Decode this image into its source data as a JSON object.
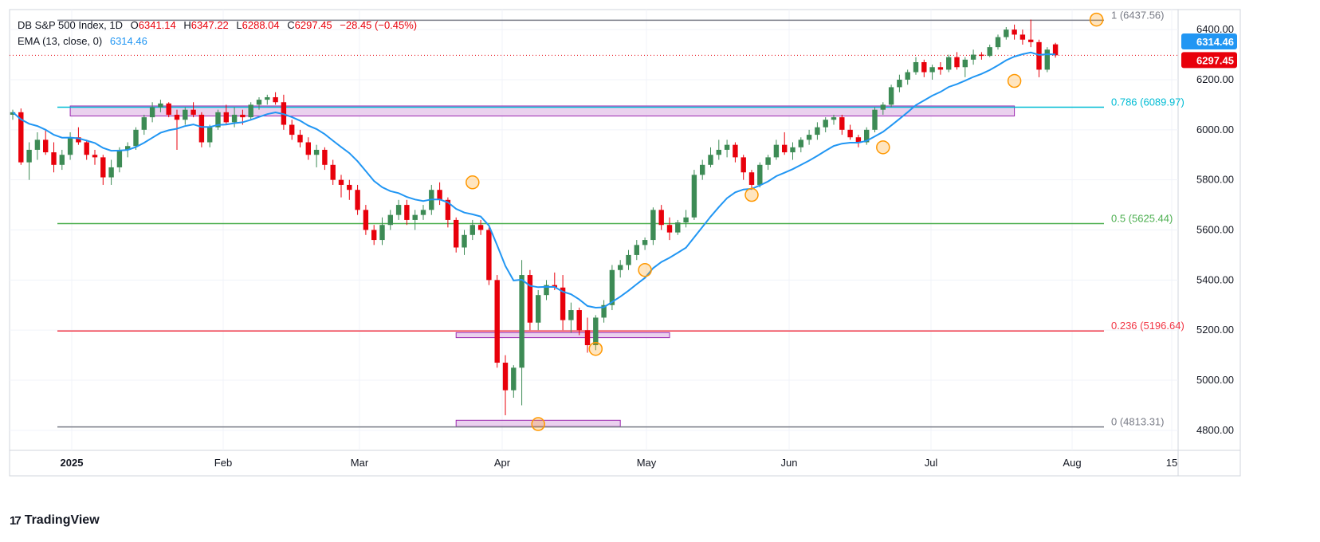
{
  "header": {
    "symbol": "DB S&P 500 Index, 1D",
    "open_label": "O",
    "open": "6341.14",
    "high_label": "H",
    "high": "6347.22",
    "low_label": "L",
    "low": "6288.04",
    "close_label": "C",
    "close": "6297.45",
    "change": "−28.45 (−0.45%)",
    "ema_label": "EMA (13, close, 0)",
    "ema_value": "6314.46"
  },
  "footer": {
    "brand": "TradingView",
    "logo_glyph": "17"
  },
  "colors": {
    "up": "#26a69a",
    "up_body": "#3d8b55",
    "down": "#e8000b",
    "ema": "#2196f3",
    "fib_1": "#787b86",
    "fib_786": "#00bcd4",
    "fib_05": "#4caf50",
    "fib_236": "#f23645",
    "fib_0": "#787b86",
    "zone_fill": "#e1bee7",
    "zone_stroke": "#9c27b0",
    "circle": "#ff9800"
  },
  "chart_data": {
    "type": "candlestick",
    "title": "DB S&P 500 Index, 1D",
    "y_axis": {
      "ticks": [
        "4800.00",
        "5000.00",
        "5200.00",
        "5400.00",
        "5600.00",
        "5800.00",
        "6000.00",
        "6200.00",
        "6400.00"
      ],
      "range": [
        4720,
        6480
      ],
      "position": "right"
    },
    "x_axis": {
      "ticks": [
        "2025",
        "Feb",
        "Mar",
        "Apr",
        "May",
        "Jun",
        "Jul",
        "Aug",
        "15"
      ]
    },
    "price_labels": [
      {
        "text": "6314.46",
        "value": 6314.46,
        "color": "#2196f3"
      },
      {
        "text": "6297.45",
        "value": 6297.45,
        "color": "#e8000b"
      }
    ],
    "fib_levels": [
      {
        "label": "1 (6437.56)",
        "value": 6437.56,
        "color": "#787b86"
      },
      {
        "label": "0.786 (6089.97)",
        "value": 6089.97,
        "color": "#00bcd4"
      },
      {
        "label": "0.5 (5625.44)",
        "value": 5625.44,
        "color": "#4caf50"
      },
      {
        "label": "0.236 (5196.64)",
        "value": 5196.64,
        "color": "#f23645"
      },
      {
        "label": "0 (4813.31)",
        "value": 4813.31,
        "color": "#787b86"
      }
    ],
    "zones": [
      {
        "from_index": 7,
        "to_index": 122,
        "top": 6095,
        "bottom": 6055
      },
      {
        "from_index": 54,
        "to_index": 80,
        "top": 5190,
        "bottom": 5170
      },
      {
        "from_index": 54,
        "to_index": 74,
        "top": 4840,
        "bottom": 4815
      }
    ],
    "markers": [
      {
        "index": 56,
        "value": 5790
      },
      {
        "index": 64,
        "value": 4825
      },
      {
        "index": 71,
        "value": 5125
      },
      {
        "index": 77,
        "value": 5440
      },
      {
        "index": 90,
        "value": 5740
      },
      {
        "index": 106,
        "value": 5930
      },
      {
        "index": 122,
        "value": 6195
      },
      {
        "index": 132,
        "value": 6440
      }
    ],
    "candles": [
      [
        6060,
        6080,
        6040,
        6070
      ],
      [
        6070,
        6085,
        5860,
        5870
      ],
      [
        5870,
        5950,
        5800,
        5920
      ],
      [
        5920,
        5990,
        5880,
        5960
      ],
      [
        5960,
        6000,
        5900,
        5910
      ],
      [
        5910,
        5950,
        5830,
        5860
      ],
      [
        5860,
        5920,
        5840,
        5900
      ],
      [
        5900,
        5990,
        5880,
        5970
      ],
      [
        5970,
        6010,
        5940,
        5950
      ],
      [
        5950,
        5960,
        5880,
        5900
      ],
      [
        5900,
        5920,
        5860,
        5890
      ],
      [
        5890,
        5900,
        5780,
        5810
      ],
      [
        5810,
        5880,
        5780,
        5850
      ],
      [
        5850,
        5930,
        5830,
        5920
      ],
      [
        5920,
        5950,
        5890,
        5935
      ],
      [
        5935,
        6010,
        5920,
        6000
      ],
      [
        6000,
        6060,
        5980,
        6050
      ],
      [
        6050,
        6110,
        6030,
        6090
      ],
      [
        6090,
        6120,
        6070,
        6105
      ],
      [
        6105,
        6110,
        6050,
        6060
      ],
      [
        6060,
        6080,
        5920,
        6040
      ],
      [
        6040,
        6090,
        6020,
        6080
      ],
      [
        6080,
        6110,
        6050,
        6060
      ],
      [
        6060,
        6070,
        5930,
        5950
      ],
      [
        5950,
        6020,
        5930,
        6010
      ],
      [
        6010,
        6080,
        6000,
        6070
      ],
      [
        6070,
        6100,
        6020,
        6030
      ],
      [
        6030,
        6090,
        6010,
        6060
      ],
      [
        6060,
        6080,
        6020,
        6050
      ],
      [
        6050,
        6110,
        6040,
        6100
      ],
      [
        6100,
        6130,
        6080,
        6120
      ],
      [
        6120,
        6140,
        6100,
        6130
      ],
      [
        6130,
        6150,
        6100,
        6110
      ],
      [
        6110,
        6140,
        6000,
        6020
      ],
      [
        6020,
        6040,
        5960,
        5980
      ],
      [
        5980,
        6000,
        5930,
        5950
      ],
      [
        5950,
        5970,
        5880,
        5900
      ],
      [
        5900,
        5940,
        5850,
        5920
      ],
      [
        5920,
        5930,
        5840,
        5860
      ],
      [
        5860,
        5880,
        5780,
        5800
      ],
      [
        5800,
        5820,
        5730,
        5780
      ],
      [
        5780,
        5800,
        5720,
        5760
      ],
      [
        5760,
        5780,
        5660,
        5680
      ],
      [
        5680,
        5700,
        5580,
        5600
      ],
      [
        5600,
        5620,
        5540,
        5560
      ],
      [
        5560,
        5650,
        5540,
        5620
      ],
      [
        5620,
        5680,
        5600,
        5660
      ],
      [
        5660,
        5720,
        5640,
        5700
      ],
      [
        5700,
        5720,
        5620,
        5640
      ],
      [
        5640,
        5680,
        5600,
        5660
      ],
      [
        5660,
        5700,
        5640,
        5680
      ],
      [
        5680,
        5780,
        5660,
        5760
      ],
      [
        5760,
        5790,
        5700,
        5720
      ],
      [
        5720,
        5730,
        5610,
        5640
      ],
      [
        5640,
        5650,
        5510,
        5530
      ],
      [
        5530,
        5600,
        5500,
        5580
      ],
      [
        5580,
        5640,
        5560,
        5620
      ],
      [
        5620,
        5640,
        5580,
        5600
      ],
      [
        5600,
        5610,
        5380,
        5400
      ],
      [
        5400,
        5420,
        5050,
        5070
      ],
      [
        5070,
        5100,
        4860,
        4960
      ],
      [
        4960,
        5060,
        4930,
        5050
      ],
      [
        5050,
        5480,
        4900,
        5420
      ],
      [
        5420,
        5440,
        5200,
        5230
      ],
      [
        5230,
        5360,
        5200,
        5340
      ],
      [
        5340,
        5400,
        5320,
        5380
      ],
      [
        5380,
        5430,
        5360,
        5370
      ],
      [
        5370,
        5420,
        5200,
        5240
      ],
      [
        5240,
        5310,
        5190,
        5280
      ],
      [
        5280,
        5290,
        5180,
        5200
      ],
      [
        5200,
        5250,
        5110,
        5140
      ],
      [
        5140,
        5260,
        5120,
        5250
      ],
      [
        5250,
        5320,
        5230,
        5300
      ],
      [
        5300,
        5460,
        5280,
        5440
      ],
      [
        5440,
        5480,
        5410,
        5460
      ],
      [
        5460,
        5520,
        5440,
        5500
      ],
      [
        5500,
        5560,
        5480,
        5540
      ],
      [
        5540,
        5570,
        5520,
        5560
      ],
      [
        5560,
        5690,
        5540,
        5680
      ],
      [
        5680,
        5700,
        5600,
        5620
      ],
      [
        5620,
        5650,
        5560,
        5590
      ],
      [
        5590,
        5640,
        5580,
        5630
      ],
      [
        5630,
        5680,
        5610,
        5650
      ],
      [
        5650,
        5840,
        5640,
        5820
      ],
      [
        5820,
        5880,
        5800,
        5860
      ],
      [
        5860,
        5930,
        5850,
        5900
      ],
      [
        5900,
        5960,
        5880,
        5920
      ],
      [
        5920,
        5960,
        5890,
        5940
      ],
      [
        5940,
        5950,
        5870,
        5890
      ],
      [
        5890,
        5900,
        5800,
        5830
      ],
      [
        5830,
        5840,
        5760,
        5780
      ],
      [
        5780,
        5870,
        5770,
        5860
      ],
      [
        5860,
        5900,
        5840,
        5890
      ],
      [
        5890,
        5960,
        5880,
        5940
      ],
      [
        5940,
        5990,
        5900,
        5910
      ],
      [
        5910,
        5950,
        5880,
        5930
      ],
      [
        5930,
        5970,
        5910,
        5960
      ],
      [
        5960,
        6000,
        5940,
        5980
      ],
      [
        5980,
        6030,
        5960,
        6010
      ],
      [
        6010,
        6050,
        5990,
        6040
      ],
      [
        6040,
        6060,
        6020,
        6050
      ],
      [
        6050,
        6060,
        5980,
        6000
      ],
      [
        6000,
        6020,
        5960,
        5970
      ],
      [
        5970,
        5980,
        5930,
        5950
      ],
      [
        5950,
        6010,
        5940,
        6000
      ],
      [
        6000,
        6090,
        5990,
        6080
      ],
      [
        6080,
        6110,
        6060,
        6100
      ],
      [
        6100,
        6180,
        6090,
        6170
      ],
      [
        6170,
        6220,
        6150,
        6200
      ],
      [
        6200,
        6240,
        6180,
        6230
      ],
      [
        6230,
        6290,
        6220,
        6270
      ],
      [
        6270,
        6280,
        6210,
        6230
      ],
      [
        6230,
        6260,
        6200,
        6250
      ],
      [
        6250,
        6270,
        6220,
        6240
      ],
      [
        6240,
        6300,
        6230,
        6290
      ],
      [
        6290,
        6310,
        6240,
        6250
      ],
      [
        6250,
        6290,
        6210,
        6280
      ],
      [
        6280,
        6320,
        6260,
        6300
      ],
      [
        6300,
        6310,
        6280,
        6295
      ],
      [
        6295,
        6340,
        6290,
        6330
      ],
      [
        6330,
        6380,
        6320,
        6370
      ],
      [
        6370,
        6410,
        6360,
        6400
      ],
      [
        6400,
        6420,
        6360,
        6380
      ],
      [
        6380,
        6400,
        6340,
        6360
      ],
      [
        6360,
        6440,
        6330,
        6350
      ],
      [
        6350,
        6360,
        6210,
        6240
      ],
      [
        6240,
        6330,
        6230,
        6320
      ],
      [
        6341.14,
        6347.22,
        6288.04,
        6297.45
      ]
    ],
    "ema_period": 13
  }
}
